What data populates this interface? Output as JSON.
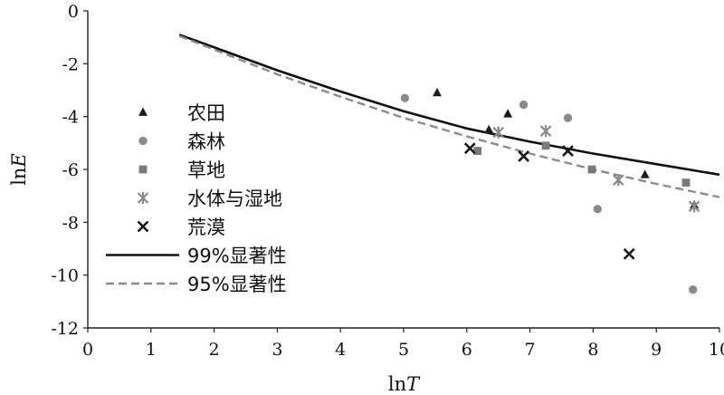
{
  "chart_data": {
    "type": "scatter",
    "xlabel": {
      "prefix": "ln",
      "var": "T"
    },
    "ylabel": {
      "prefix": "ln",
      "var": "E"
    },
    "xlim": [
      0,
      10
    ],
    "ylim": [
      -12,
      0
    ],
    "xticks": [
      0,
      1,
      2,
      3,
      4,
      5,
      6,
      7,
      8,
      9,
      10
    ],
    "yticks": [
      0,
      -2,
      -4,
      -6,
      -8,
      -10,
      -12
    ],
    "grid": false,
    "legend_position": "left",
    "colors": {
      "axis": "#222222",
      "curve99": "#111111",
      "curve95": "#8c8c8c"
    },
    "series": [
      {
        "name": "农田",
        "marker": "triangle",
        "color": "#1a1a1a",
        "points": [
          [
            5.53,
            -3.1
          ],
          [
            6.35,
            -4.5
          ],
          [
            6.65,
            -3.9
          ],
          [
            8.82,
            -6.2
          ],
          [
            9.6,
            -7.35
          ]
        ]
      },
      {
        "name": "森林",
        "marker": "circle",
        "color": "#8a8a8a",
        "points": [
          [
            5.02,
            -3.3
          ],
          [
            6.9,
            -3.55
          ],
          [
            7.6,
            -4.05
          ],
          [
            8.07,
            -7.5
          ],
          [
            9.58,
            -10.55
          ]
        ]
      },
      {
        "name": "草地",
        "marker": "square",
        "color": "#7a7a7a",
        "points": [
          [
            6.17,
            -5.3
          ],
          [
            7.25,
            -5.1
          ],
          [
            7.98,
            -6.0
          ],
          [
            9.47,
            -6.5
          ]
        ]
      },
      {
        "name": "水体与湿地",
        "marker": "star",
        "color": "#8a8a8a",
        "points": [
          [
            6.5,
            -4.6
          ],
          [
            7.25,
            -4.55
          ],
          [
            8.4,
            -6.4
          ],
          [
            9.6,
            -7.4
          ]
        ]
      },
      {
        "name": "荒漠",
        "marker": "x",
        "color": "#1a1a1a",
        "points": [
          [
            6.05,
            -5.2
          ],
          [
            6.9,
            -5.5
          ],
          [
            7.6,
            -5.3
          ],
          [
            8.57,
            -9.2
          ]
        ]
      }
    ],
    "curves": [
      {
        "name": "99%显著性",
        "style": "solid",
        "color": "#111111",
        "points": [
          [
            1.45,
            -0.9
          ],
          [
            3,
            -2.25
          ],
          [
            4,
            -3.05
          ],
          [
            5,
            -3.8
          ],
          [
            6,
            -4.45
          ],
          [
            7,
            -4.95
          ],
          [
            8,
            -5.4
          ],
          [
            9,
            -5.8
          ],
          [
            10,
            -6.2
          ]
        ]
      },
      {
        "name": "95%显著性",
        "style": "dashed",
        "color": "#8c8c8c",
        "points": [
          [
            1.45,
            -0.95
          ],
          [
            3,
            -2.4
          ],
          [
            4,
            -3.25
          ],
          [
            5,
            -4.05
          ],
          [
            6,
            -4.75
          ],
          [
            7,
            -5.4
          ],
          [
            8,
            -6.0
          ],
          [
            9,
            -6.55
          ],
          [
            10,
            -7.05
          ]
        ]
      }
    ]
  }
}
